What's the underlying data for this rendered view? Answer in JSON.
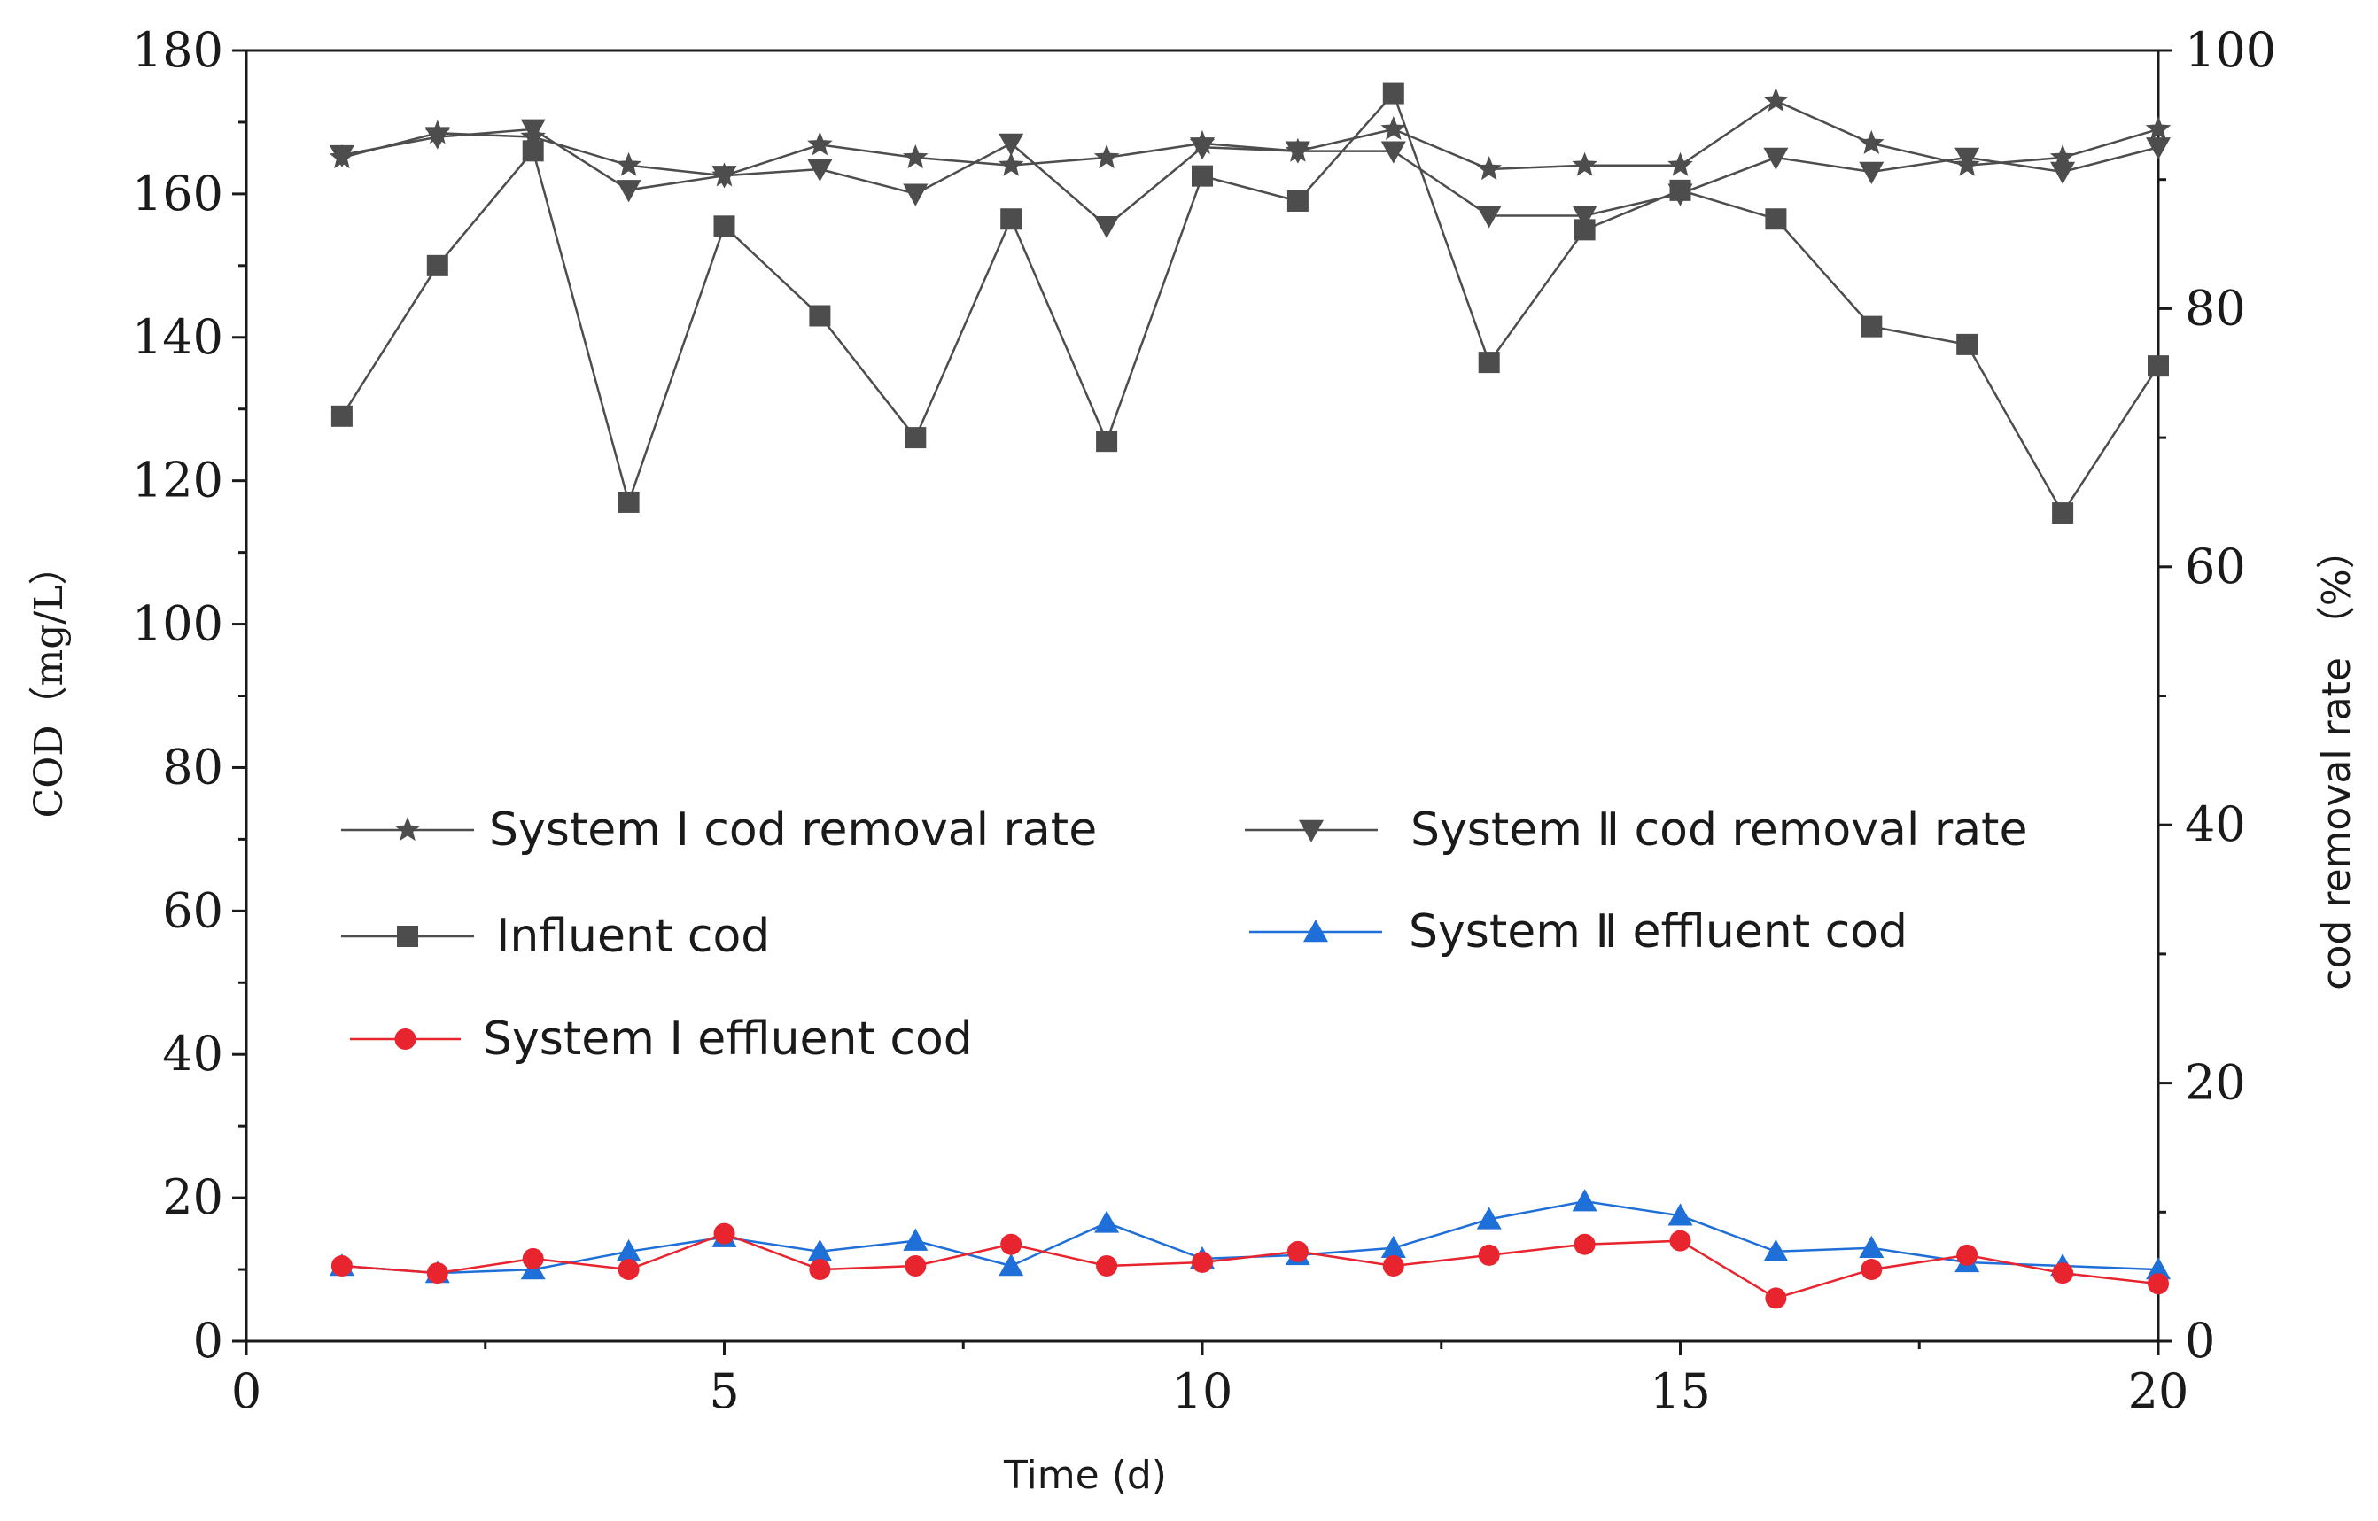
{
  "chart_data": {
    "type": "line",
    "title": "",
    "xlabel": "Time (d)",
    "ylabel_left": "COD（mg/L）",
    "ylabel_right": "cod removal rate （%）",
    "xlim": [
      0,
      20
    ],
    "ylim_left": [
      0,
      180
    ],
    "ylim_right": [
      0,
      100
    ],
    "x_ticks": [
      0,
      5,
      10,
      15,
      20
    ],
    "y_left_ticks": [
      0,
      20,
      40,
      60,
      80,
      100,
      120,
      140,
      160,
      180
    ],
    "y_right_ticks": [
      0,
      20,
      40,
      60,
      80,
      100
    ],
    "grid": false,
    "x": [
      1,
      2,
      3,
      4,
      5,
      6,
      7,
      8,
      9,
      10,
      11,
      12,
      13,
      14,
      15,
      16,
      17,
      18,
      19,
      20
    ],
    "series": [
      {
        "name": "System Ⅰ cod removal rate",
        "axis": "right",
        "marker": "star",
        "color": "#4d4d4d",
        "values": [
          91.7,
          93.6,
          93.3,
          91.1,
          90.3,
          92.7,
          91.7,
          91.1,
          91.7,
          92.8,
          92.2,
          93.9,
          90.8,
          91.1,
          91.1,
          96.1,
          92.8,
          91.1,
          91.7,
          93.9
        ]
      },
      {
        "name": "System Ⅱ cod removal rate",
        "axis": "right",
        "marker": "triangle-down",
        "color": "#4d4d4d",
        "values": [
          91.9,
          93.3,
          93.9,
          89.2,
          90.3,
          90.8,
          88.9,
          92.8,
          86.4,
          92.5,
          92.2,
          92.2,
          87.2,
          87.2,
          88.9,
          91.7,
          90.6,
          91.7,
          90.6,
          92.5
        ]
      },
      {
        "name": "Influent cod",
        "axis": "left",
        "marker": "square",
        "color": "#4d4d4d",
        "values": [
          129,
          150,
          166,
          117,
          155.5,
          143,
          126,
          156.5,
          125.5,
          162.5,
          159,
          174,
          136.5,
          155,
          160.5,
          156.5,
          141.5,
          139,
          115.5,
          136
        ]
      },
      {
        "name": "System Ⅱ effluent cod",
        "axis": "left",
        "marker": "triangle-up",
        "color": "#1f6fd8",
        "values": [
          10.5,
          9.5,
          10,
          12.5,
          14.5,
          12.5,
          14,
          10.5,
          16.5,
          11.5,
          12,
          13,
          17,
          19.5,
          17.5,
          12.5,
          13,
          11,
          10.5,
          10
        ]
      },
      {
        "name": "System Ⅰ effluent cod",
        "axis": "left",
        "marker": "circle",
        "color": "#e8242e",
        "values": [
          10.5,
          9.5,
          11.5,
          10,
          15,
          10,
          10.5,
          13.5,
          10.5,
          11,
          12.5,
          10.5,
          12,
          13.5,
          14,
          6,
          10,
          12,
          9.5,
          8
        ]
      }
    ],
    "legend": [
      {
        "label": "System Ⅰ cod removal rate",
        "marker": "star",
        "color": "#4d4d4d"
      },
      {
        "label": "System Ⅱ cod removal rate",
        "marker": "triangle-down",
        "color": "#4d4d4d"
      },
      {
        "label": "Influent cod",
        "marker": "square",
        "color": "#4d4d4d"
      },
      {
        "label": "System Ⅱ effluent cod",
        "marker": "triangle-up",
        "color": "#1f6fd8"
      },
      {
        "label": "System Ⅰ effluent cod",
        "marker": "circle",
        "color": "#e8242e"
      }
    ],
    "legend_placement": "center-left"
  }
}
